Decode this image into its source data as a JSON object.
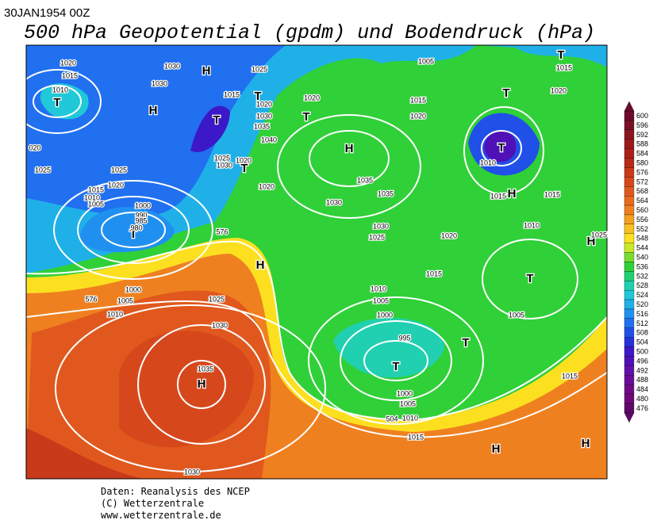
{
  "header": {
    "date": "30JAN1954 00Z",
    "title": "500 hPa Geopotential (gpdm) und Bodendruck (hPa)"
  },
  "map": {
    "labels": [
      "H",
      "T",
      "H",
      "T",
      "T",
      "T",
      "H",
      "T",
      "T",
      "T",
      "H",
      "H",
      "T",
      "H",
      "T",
      "T",
      "T",
      "H",
      "H",
      "H",
      "T",
      "1020",
      "1015",
      "1010",
      "1030",
      "1030",
      "1015",
      "1025",
      "1020",
      "1020",
      "1030",
      "1035",
      "1040",
      "1005",
      "1015",
      "1020",
      "1020",
      "1015",
      "020",
      "1025",
      "1025",
      "1020",
      "1015",
      "1010",
      "1005",
      "1000",
      "990",
      "985",
      "980",
      "1025",
      "1030",
      "1020",
      "1020",
      "1035",
      "1035",
      "1030",
      "1030",
      "1025",
      "1020",
      "1010",
      "1015",
      "1010",
      "1015",
      "1015",
      "1010",
      "1005",
      "1000",
      "995",
      "1000",
      "1005",
      "1010",
      "1015",
      "1005",
      "1015",
      "1000",
      "1005",
      "1010",
      "1025",
      "1030",
      "1035",
      "1030",
      "1025",
      "576",
      "576",
      "504"
    ]
  },
  "legend": {
    "entries": [
      {
        "value": 600,
        "color": "#6e0a2c"
      },
      {
        "value": 596,
        "color": "#7a0f25"
      },
      {
        "value": 592,
        "color": "#8a1420"
      },
      {
        "value": 588,
        "color": "#9a1a1c"
      },
      {
        "value": 584,
        "color": "#aa2018"
      },
      {
        "value": 580,
        "color": "#b92a18"
      },
      {
        "value": 576,
        "color": "#c83a1a"
      },
      {
        "value": 572,
        "color": "#d6481c"
      },
      {
        "value": 568,
        "color": "#e0581e"
      },
      {
        "value": 564,
        "color": "#e86a1e"
      },
      {
        "value": 560,
        "color": "#ef8020"
      },
      {
        "value": 556,
        "color": "#f4a020"
      },
      {
        "value": 552,
        "color": "#f8c020"
      },
      {
        "value": 548,
        "color": "#fce020"
      },
      {
        "value": 544,
        "color": "#c8e828"
      },
      {
        "value": 540,
        "color": "#78dc30"
      },
      {
        "value": 536,
        "color": "#30d038"
      },
      {
        "value": 532,
        "color": "#20d070"
      },
      {
        "value": 528,
        "color": "#20d0b0"
      },
      {
        "value": 524,
        "color": "#20c8d8"
      },
      {
        "value": 520,
        "color": "#20b0e8"
      },
      {
        "value": 516,
        "color": "#2090f0"
      },
      {
        "value": 512,
        "color": "#2070f0"
      },
      {
        "value": 508,
        "color": "#2050e8"
      },
      {
        "value": 504,
        "color": "#2830d8"
      },
      {
        "value": 500,
        "color": "#3c18c8"
      },
      {
        "value": 496,
        "color": "#5010b8"
      },
      {
        "value": 492,
        "color": "#6010a8"
      },
      {
        "value": 488,
        "color": "#6a0c98"
      },
      {
        "value": 484,
        "color": "#700888"
      },
      {
        "value": 480,
        "color": "#700878"
      },
      {
        "value": 476,
        "color": "#600868"
      }
    ]
  },
  "footer": {
    "lines": [
      "Daten: Reanalysis des NCEP",
      "(C) Wetterzentrale",
      "www.wetterzentrale.de"
    ]
  }
}
